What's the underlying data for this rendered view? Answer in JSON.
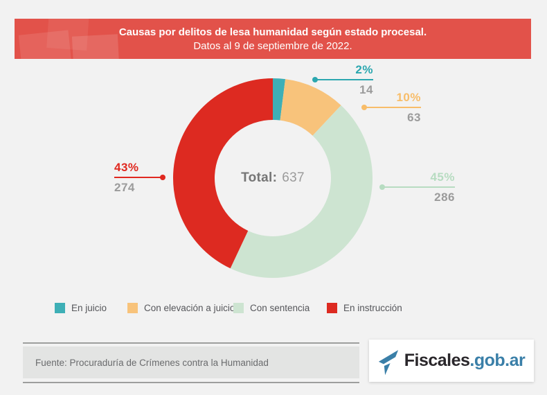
{
  "chart_data": {
    "type": "pie",
    "donut": true,
    "title": "Causas por delitos de lesa humanidad según estado procesal.",
    "subtitle": "Datos al 9 de septiembre de 2022.",
    "total_label": "Total:",
    "total": 637,
    "legend_position": "bottom",
    "slices": [
      {
        "label": "En juicio",
        "value": 14,
        "pct": 2,
        "pct_label": "2%",
        "color": "#3eafb6",
        "label_color": "#2ba7af"
      },
      {
        "label": "Con elevación a juicio",
        "value": 63,
        "pct": 10,
        "pct_label": "10%",
        "color": "#f8c37b",
        "label_color": "#f8bd69"
      },
      {
        "label": "Con sentencia",
        "value": 286,
        "pct": 45,
        "pct_label": "45%",
        "color": "#cde4d1",
        "label_color": "#b7dcc1"
      },
      {
        "label": "En instrucción",
        "value": 274,
        "pct": 43,
        "pct_label": "43%",
        "color": "#dd2a21",
        "label_color": "#e0281f"
      }
    ]
  },
  "footer": {
    "source": "Fuente: Procuraduría de Crímenes contra la Humanidad"
  },
  "logo": {
    "brand": "Fiscales",
    "domain": ".gob.ar",
    "icon": "fiscales-flag-icon",
    "brand_color": "#2a272b",
    "domain_color": "#3a7fa8"
  },
  "colors": {
    "background": "#f2f2f2",
    "banner": "#e2524a",
    "banner_text": "#ffffff",
    "count_text": "#9b9b9b"
  }
}
